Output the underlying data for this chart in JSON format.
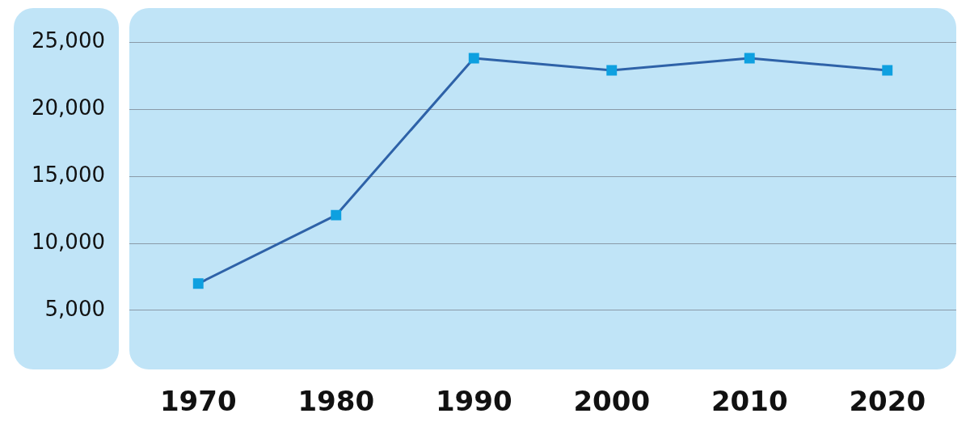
{
  "chart_data": {
    "type": "line",
    "categories": [
      "1970",
      "1980",
      "1990",
      "2000",
      "2010",
      "2020"
    ],
    "series": [
      {
        "color": "#2e62a8",
        "values": [
          7000,
          12100,
          23800,
          22900,
          23800,
          22900
        ]
      }
    ],
    "ylim": [
      600,
      27500
    ],
    "yticks": [
      {
        "value": 5000,
        "label": "5,000"
      },
      {
        "value": 10000,
        "label": "10,000"
      },
      {
        "value": 15000,
        "label": "15,000"
      },
      {
        "value": 20000,
        "label": "20,000"
      },
      {
        "value": 25000,
        "label": "25,000"
      }
    ],
    "grid": "y",
    "marker": "square",
    "line_style": "solid",
    "legend": false
  }
}
